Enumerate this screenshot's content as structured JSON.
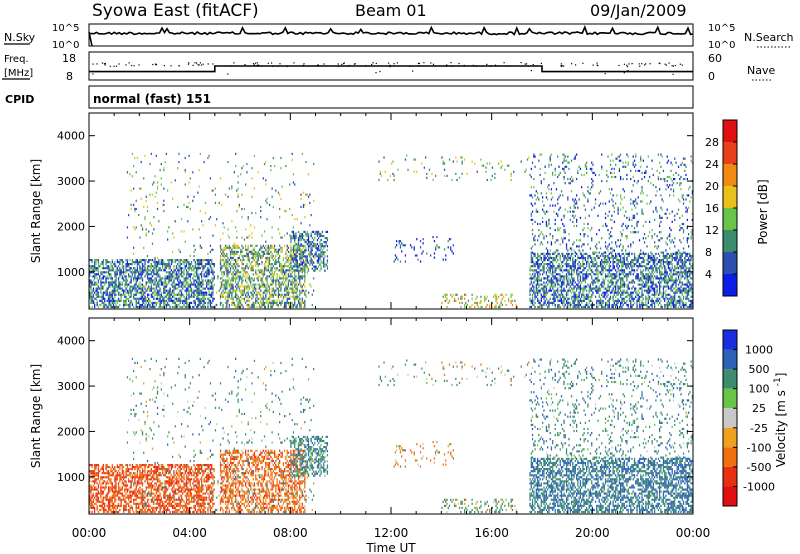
{
  "header": {
    "station": "Syowa East (fitACF)",
    "beam": "Beam 01",
    "date": "09/Jan/2009"
  },
  "noise_panel": {
    "left_label": "N.Sky",
    "left_ticks": [
      "10^5",
      "10^0"
    ],
    "right_ticks": [
      "10^5",
      "10^0"
    ],
    "right_label": "N.Search"
  },
  "freq_panel": {
    "left_label_1": "Freq.",
    "left_label_2": "[MHz]",
    "left_ticks": [
      "18",
      "8"
    ],
    "right_ticks": [
      "60",
      "0"
    ],
    "right_label": "Nave",
    "freq_steps": [
      {
        "t_start": 0,
        "t_end": 5,
        "mhz": 11.0
      },
      {
        "t_start": 5,
        "t_end": 18,
        "mhz": 13.0
      },
      {
        "t_start": 18,
        "t_end": 24,
        "mhz": 11.0
      }
    ]
  },
  "cpid": {
    "label": "CPID",
    "value": "normal (fast) 151"
  },
  "time_axis": {
    "label": "Time UT",
    "ticks": [
      "00:00",
      "04:00",
      "08:00",
      "12:00",
      "16:00",
      "20:00",
      "00:00"
    ],
    "range_hours": [
      0,
      24
    ]
  },
  "range_axis": {
    "label": "Slant Range [km]",
    "ticks": [
      "1000",
      "2000",
      "3000",
      "4000"
    ],
    "range_km": [
      180,
      4500
    ]
  },
  "power_scale": {
    "label": "Power [dB]",
    "ticks": [
      "4",
      "8",
      "12",
      "16",
      "20",
      "24",
      "28"
    ],
    "colors": [
      "#0a1ee6",
      "#2c4fb0",
      "#3c8c6e",
      "#6ac44a",
      "#e8c21a",
      "#f08a10",
      "#e8401a",
      "#e01010"
    ]
  },
  "velocity_scale": {
    "label": "Velocity [m s^-1]",
    "ticks": [
      "1000",
      "500",
      "100",
      "25",
      "-25",
      "-100",
      "-500",
      "-1000"
    ],
    "colors": [
      "#1a2ee0",
      "#2e62b8",
      "#3c8c6e",
      "#6ac44a",
      "#c8c8c8",
      "#f0a020",
      "#f07010",
      "#e83010",
      "#e01010"
    ]
  },
  "chart_data": {
    "type": "heatmap",
    "title": "Syowa East (fitACF)",
    "xlabel": "Time UT",
    "ylabel": "Slant Range [km]",
    "xlim_hours": [
      0,
      24
    ],
    "ylim_km": [
      180,
      4500
    ],
    "echo_regions": [
      {
        "t0": 0.0,
        "t1": 5.0,
        "r0": 200,
        "r1": 1300,
        "density": 0.6,
        "power_db": 12,
        "velocity": -300
      },
      {
        "t0": 5.2,
        "t1": 8.6,
        "r0": 200,
        "r1": 1600,
        "density": 0.5,
        "power_db": 14,
        "velocity": -200
      },
      {
        "t0": 8.0,
        "t1": 9.5,
        "r0": 1000,
        "r1": 1900,
        "density": 0.45,
        "power_db": 10,
        "velocity": 200
      },
      {
        "t0": 1.5,
        "t1": 9.0,
        "r0": 200,
        "r1": 3600,
        "density": 0.04,
        "power_db": 14,
        "velocity": 150
      },
      {
        "t0": 12.0,
        "t1": 14.5,
        "r0": 1200,
        "r1": 1800,
        "density": 0.08,
        "power_db": 8,
        "velocity": -100
      },
      {
        "t0": 14.0,
        "t1": 17.0,
        "r0": 200,
        "r1": 500,
        "density": 0.25,
        "power_db": 18,
        "velocity": 100
      },
      {
        "t0": 17.5,
        "t1": 24.0,
        "r0": 200,
        "r1": 1400,
        "density": 0.55,
        "power_db": 10,
        "velocity": 300
      },
      {
        "t0": 17.5,
        "t1": 24.0,
        "r0": 1400,
        "r1": 3600,
        "density": 0.12,
        "power_db": 10,
        "velocity": 200
      },
      {
        "t0": 11.5,
        "t1": 17.5,
        "r0": 3000,
        "r1": 3600,
        "density": 0.05,
        "power_db": 14,
        "velocity": 100
      }
    ]
  }
}
